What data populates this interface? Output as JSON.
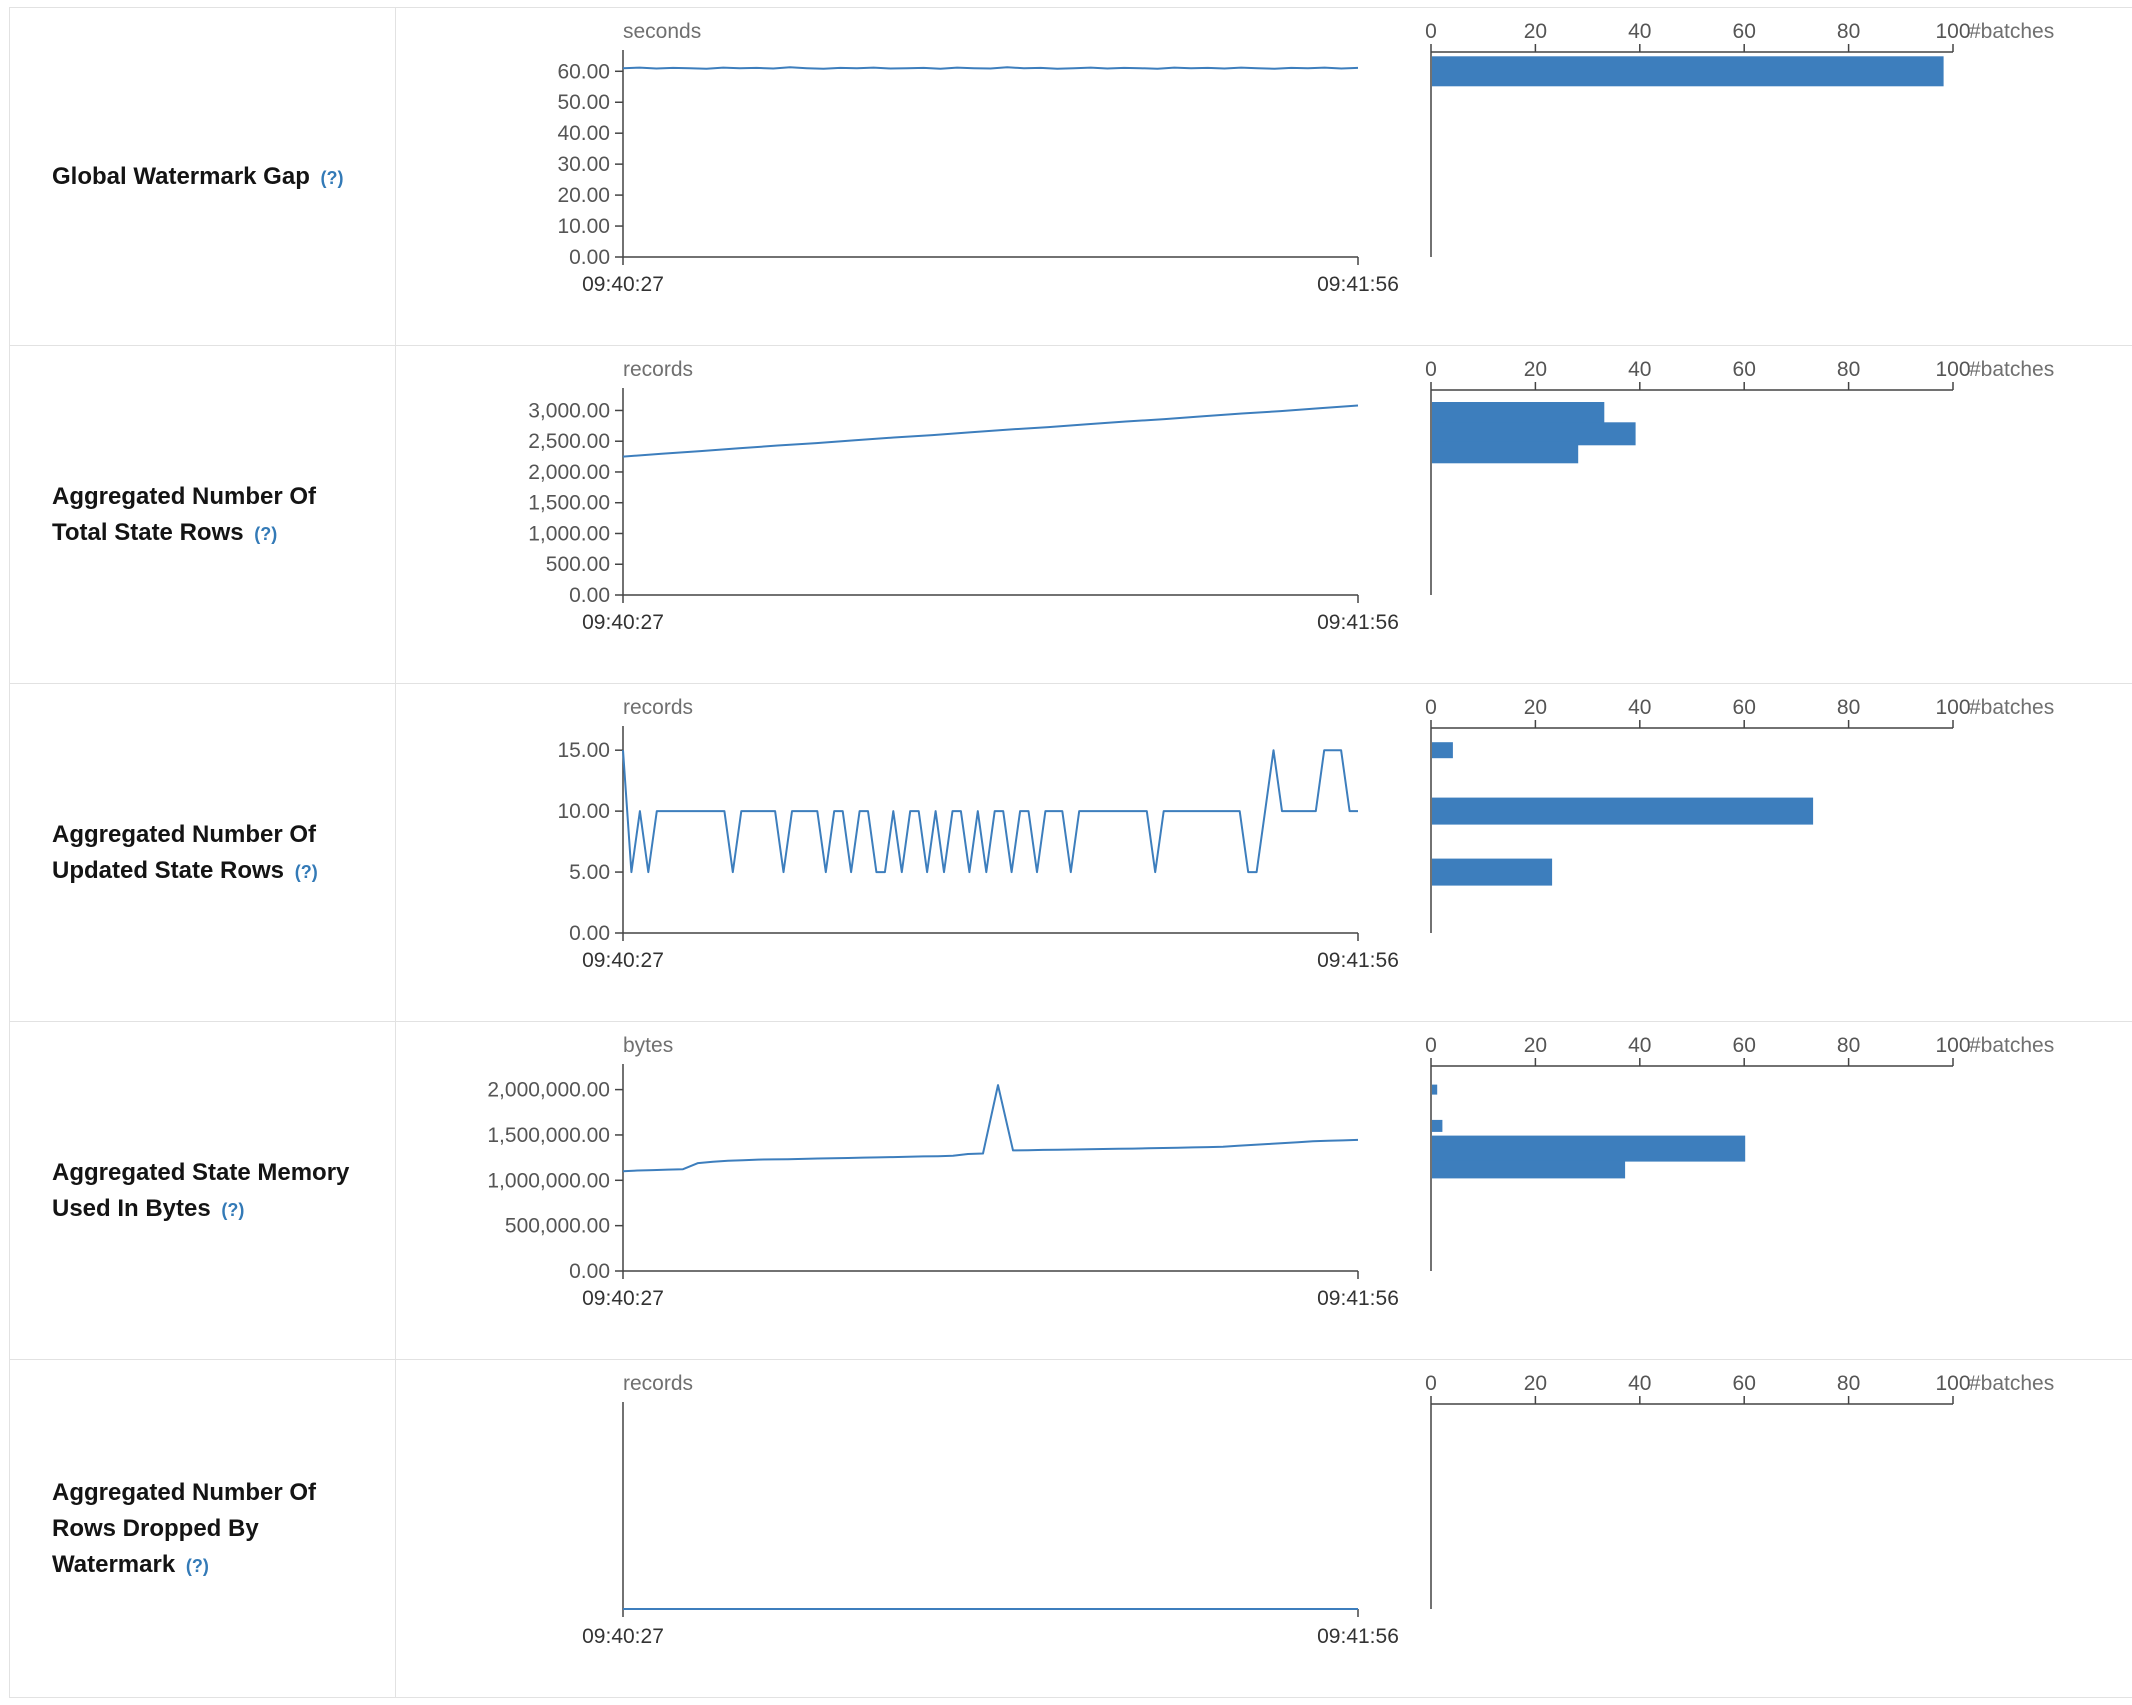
{
  "accent_color": "#3d7ebd",
  "help_color": "#337ab7",
  "chart_data": {
    "rows": [
      {
        "label": "Global Watermark Gap",
        "help": "(?)",
        "timeline": {
          "type": "line",
          "unit": "seconds",
          "yticks": [
            "60.00",
            "50.00",
            "40.00",
            "30.00",
            "20.00",
            "10.00",
            "0.00"
          ],
          "ymax": 63,
          "x_start": "09:40:27",
          "x_end": "09:41:56",
          "values": [
            61,
            61.2,
            60.9,
            61.1,
            61,
            60.8,
            61.2,
            61,
            61.1,
            60.9,
            61.3,
            61,
            60.8,
            61.1,
            61,
            61.2,
            60.9,
            61,
            61.1,
            60.8,
            61.2,
            61,
            60.9,
            61.3,
            61,
            61.1,
            60.8,
            61,
            61.2,
            60.9,
            61.1,
            61,
            60.8,
            61.2,
            61,
            61.1,
            60.9,
            61.2,
            61,
            60.8,
            61.1,
            61,
            61.2,
            60.9,
            61.1
          ]
        },
        "histogram": {
          "type": "bar",
          "xlabel": "#batches",
          "xticks": [
            "0",
            "20",
            "40",
            "60",
            "80",
            "100"
          ],
          "xmax": 100,
          "bars": [
            {
              "center_value": 60,
              "count": 98,
              "thickness": 30
            }
          ]
        }
      },
      {
        "label": "Aggregated Number Of Total State Rows",
        "help": "(?)",
        "timeline": {
          "type": "line",
          "unit": "records",
          "yticks": [
            "3,000.00",
            "2,500.00",
            "2,000.00",
            "1,500.00",
            "1,000.00",
            "500.00",
            "0.00"
          ],
          "ymax": 3170,
          "x_start": "09:40:27",
          "x_end": "09:41:56",
          "values": [
            2250,
            2295,
            2340,
            2385,
            2430,
            2470,
            2515,
            2560,
            2600,
            2645,
            2690,
            2730,
            2775,
            2820,
            2860,
            2905,
            2950,
            2990,
            3035,
            3080
          ]
        },
        "histogram": {
          "type": "bar",
          "xlabel": "#batches",
          "xticks": [
            "0",
            "20",
            "40",
            "60",
            "80",
            "100"
          ],
          "xmax": 100,
          "bars": [
            {
              "center_value": 2950,
              "count": 33,
              "thickness": 23
            },
            {
              "center_value": 2620,
              "count": 39,
              "thickness": 23
            },
            {
              "center_value": 2320,
              "count": 28,
              "thickness": 22
            }
          ]
        }
      },
      {
        "label": "Aggregated Number Of Updated State Rows",
        "help": "(?)",
        "timeline": {
          "type": "line",
          "unit": "records",
          "yticks": [
            "15.00",
            "10.00",
            "5.00",
            "0.00"
          ],
          "ymax": 16,
          "x_start": "09:40:27",
          "x_end": "09:41:56",
          "values": [
            15,
            5,
            10,
            5,
            10,
            10,
            10,
            10,
            10,
            10,
            10,
            10,
            10,
            5,
            10,
            10,
            10,
            10,
            10,
            5,
            10,
            10,
            10,
            10,
            5,
            10,
            10,
            5,
            10,
            10,
            5,
            5,
            10,
            5,
            10,
            10,
            5,
            10,
            5,
            10,
            10,
            5,
            10,
            5,
            10,
            10,
            5,
            10,
            10,
            5,
            10,
            10,
            10,
            5,
            10,
            10,
            10,
            10,
            10,
            10,
            10,
            10,
            10,
            5,
            10,
            10,
            10,
            10,
            10,
            10,
            10,
            10,
            10,
            10,
            5,
            5,
            10,
            15,
            10,
            10,
            10,
            10,
            10,
            15,
            15,
            15,
            10,
            10
          ]
        },
        "histogram": {
          "type": "bar",
          "xlabel": "#batches",
          "xticks": [
            "0",
            "20",
            "40",
            "60",
            "80",
            "100"
          ],
          "xmax": 100,
          "bars": [
            {
              "center_value": 15,
              "count": 4,
              "thickness": 16
            },
            {
              "center_value": 10,
              "count": 73,
              "thickness": 27
            },
            {
              "center_value": 5,
              "count": 23,
              "thickness": 27
            }
          ]
        }
      },
      {
        "label": "Aggregated State Memory Used In Bytes",
        "help": "(?)",
        "timeline": {
          "type": "line",
          "unit": "bytes",
          "yticks": [
            "2,000,000.00",
            "1,500,000.00",
            "1,000,000.00",
            "500,000.00",
            "0.00"
          ],
          "ymax": 2150000,
          "x_start": "09:40:27",
          "x_end": "09:41:56",
          "values": [
            1100000,
            1108000,
            1112000,
            1118000,
            1122000,
            1190000,
            1205000,
            1215000,
            1222000,
            1228000,
            1230000,
            1232000,
            1236000,
            1240000,
            1243000,
            1246000,
            1250000,
            1253000,
            1256000,
            1260000,
            1263000,
            1266000,
            1270000,
            1290000,
            1295000,
            2050000,
            1330000,
            1332000,
            1335000,
            1337000,
            1340000,
            1342000,
            1345000,
            1348000,
            1350000,
            1353000,
            1356000,
            1360000,
            1363000,
            1366000,
            1370000,
            1380000,
            1390000,
            1400000,
            1410000,
            1420000,
            1430000,
            1435000,
            1440000,
            1445000
          ]
        },
        "histogram": {
          "type": "bar",
          "xlabel": "#batches",
          "xticks": [
            "0",
            "20",
            "40",
            "60",
            "80",
            "100"
          ],
          "xmax": 100,
          "bars": [
            {
              "center_value": 2000000,
              "count": 1,
              "thickness": 10
            },
            {
              "center_value": 1600000,
              "count": 2,
              "thickness": 12
            },
            {
              "center_value": 1350000,
              "count": 60,
              "thickness": 26
            },
            {
              "center_value": 1120000,
              "count": 37,
              "thickness": 18
            }
          ]
        }
      },
      {
        "label": "Aggregated Number Of Rows Dropped By Watermark",
        "help": "(?)",
        "timeline": {
          "type": "line",
          "unit": "records",
          "yticks": [],
          "ymax": 1,
          "x_start": "09:40:27",
          "x_end": "09:41:56",
          "values": [
            0,
            0
          ]
        },
        "histogram": {
          "type": "bar",
          "xlabel": "#batches",
          "xticks": [
            "0",
            "20",
            "40",
            "60",
            "80",
            "100"
          ],
          "xmax": 100,
          "bars": []
        }
      }
    ]
  }
}
